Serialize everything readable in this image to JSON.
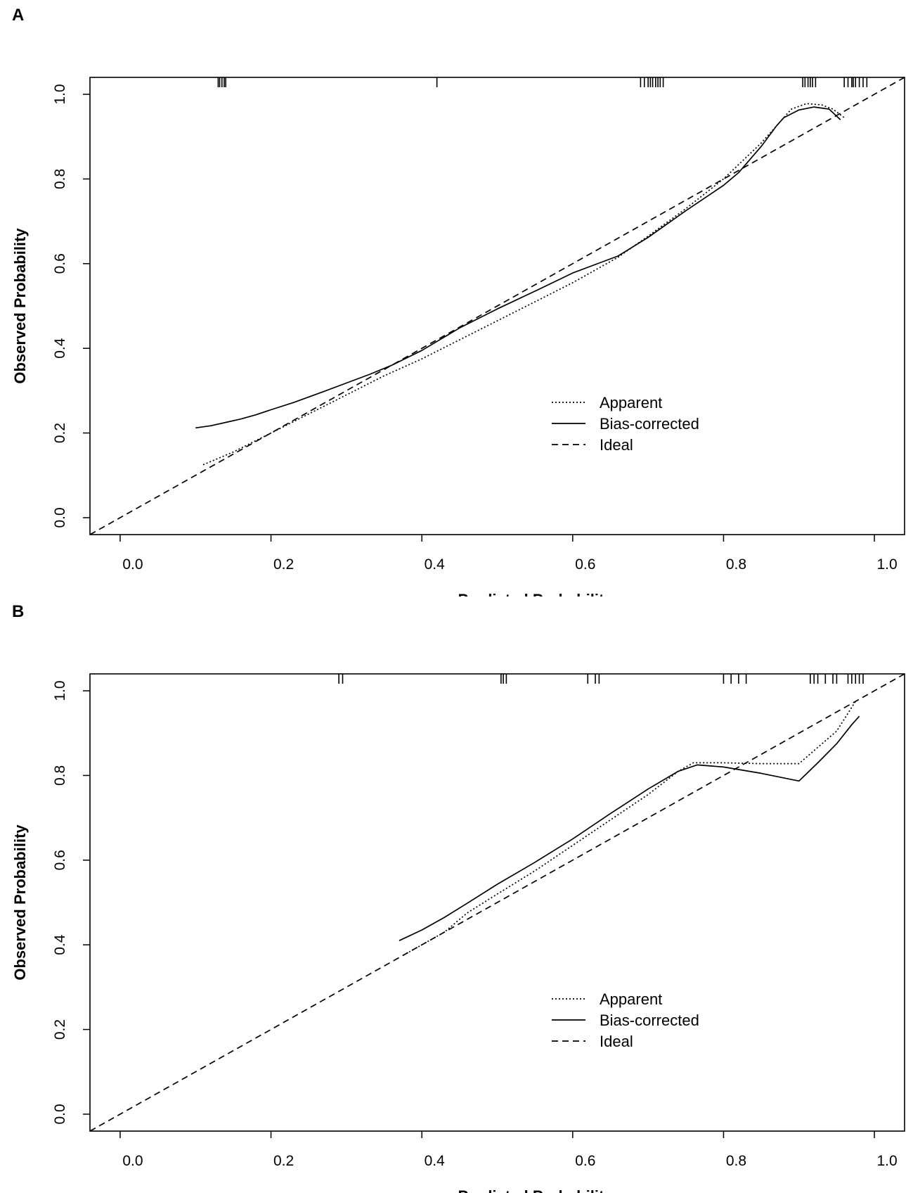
{
  "chart_data": [
    {
      "panel": "A",
      "type": "line",
      "title": "",
      "xlabel": "Predicted Probability",
      "ylabel": "Observed Probability",
      "xlim": [
        -0.04,
        1.04
      ],
      "ylim": [
        -0.04,
        1.04
      ],
      "xticks": [
        "0.0",
        "0.2",
        "0.4",
        "0.6",
        "0.8",
        "1.0"
      ],
      "yticks": [
        "0.0",
        "0.2",
        "0.4",
        "0.6",
        "0.8",
        "1.0"
      ],
      "legend": [
        "Apparent",
        "Bias-corrected",
        "Ideal"
      ],
      "legend_position": "lower-right",
      "series": [
        {
          "name": "Apparent",
          "style": "dotted",
          "points": [
            [
              0.11,
              0.125
            ],
            [
              0.15,
              0.155
            ],
            [
              0.2,
              0.2
            ],
            [
              0.25,
              0.245
            ],
            [
              0.3,
              0.29
            ],
            [
              0.35,
              0.335
            ],
            [
              0.4,
              0.375
            ],
            [
              0.45,
              0.42
            ],
            [
              0.5,
              0.465
            ],
            [
              0.55,
              0.51
            ],
            [
              0.6,
              0.555
            ],
            [
              0.66,
              0.615
            ],
            [
              0.7,
              0.665
            ],
            [
              0.75,
              0.73
            ],
            [
              0.8,
              0.8
            ],
            [
              0.85,
              0.885
            ],
            [
              0.89,
              0.965
            ],
            [
              0.91,
              0.978
            ],
            [
              0.93,
              0.975
            ],
            [
              0.945,
              0.965
            ],
            [
              0.96,
              0.945
            ]
          ]
        },
        {
          "name": "Bias-corrected",
          "style": "solid",
          "points": [
            [
              0.1,
              0.212
            ],
            [
              0.12,
              0.217
            ],
            [
              0.14,
              0.225
            ],
            [
              0.16,
              0.233
            ],
            [
              0.18,
              0.243
            ],
            [
              0.2,
              0.255
            ],
            [
              0.23,
              0.272
            ],
            [
              0.27,
              0.298
            ],
            [
              0.3,
              0.318
            ],
            [
              0.33,
              0.338
            ],
            [
              0.36,
              0.36
            ],
            [
              0.4,
              0.395
            ],
            [
              0.45,
              0.448
            ],
            [
              0.5,
              0.493
            ],
            [
              0.55,
              0.535
            ],
            [
              0.6,
              0.578
            ],
            [
              0.63,
              0.598
            ],
            [
              0.66,
              0.618
            ],
            [
              0.7,
              0.662
            ],
            [
              0.75,
              0.725
            ],
            [
              0.8,
              0.785
            ],
            [
              0.82,
              0.815
            ],
            [
              0.85,
              0.877
            ],
            [
              0.87,
              0.925
            ],
            [
              0.88,
              0.945
            ],
            [
              0.9,
              0.963
            ],
            [
              0.92,
              0.97
            ],
            [
              0.94,
              0.965
            ],
            [
              0.955,
              0.94
            ]
          ]
        },
        {
          "name": "Ideal",
          "style": "dashed",
          "points": [
            [
              -0.04,
              -0.04
            ],
            [
              1.04,
              1.04
            ]
          ]
        }
      ],
      "rug": [
        0.13,
        0.132,
        0.135,
        0.138,
        0.14,
        0.42,
        0.69,
        0.695,
        0.7,
        0.703,
        0.706,
        0.71,
        0.713,
        0.716,
        0.72,
        0.905,
        0.908,
        0.912,
        0.915,
        0.918,
        0.922,
        0.96,
        0.965,
        0.97,
        0.972,
        0.975,
        0.98,
        0.985,
        0.99
      ]
    },
    {
      "panel": "B",
      "type": "line",
      "title": "",
      "xlabel": "Predicted Probability",
      "ylabel": "Observed Probability",
      "xlim": [
        -0.04,
        1.04
      ],
      "ylim": [
        -0.04,
        1.04
      ],
      "xticks": [
        "0.0",
        "0.2",
        "0.4",
        "0.6",
        "0.8",
        "1.0"
      ],
      "yticks": [
        "0.0",
        "0.2",
        "0.4",
        "0.6",
        "0.8",
        "1.0"
      ],
      "legend": [
        "Apparent",
        "Bias-corrected",
        "Ideal"
      ],
      "legend_position": "lower-right",
      "series": [
        {
          "name": "Apparent",
          "style": "dotted",
          "points": [
            [
              0.375,
              0.375
            ],
            [
              0.4,
              0.4
            ],
            [
              0.43,
              0.43
            ],
            [
              0.46,
              0.475
            ],
            [
              0.5,
              0.52
            ],
            [
              0.55,
              0.575
            ],
            [
              0.6,
              0.635
            ],
            [
              0.65,
              0.695
            ],
            [
              0.7,
              0.755
            ],
            [
              0.74,
              0.81
            ],
            [
              0.76,
              0.83
            ],
            [
              0.8,
              0.83
            ],
            [
              0.85,
              0.828
            ],
            [
              0.9,
              0.828
            ],
            [
              0.95,
              0.905
            ],
            [
              0.975,
              0.975
            ]
          ]
        },
        {
          "name": "Bias-corrected",
          "style": "solid",
          "points": [
            [
              0.37,
              0.41
            ],
            [
              0.4,
              0.435
            ],
            [
              0.43,
              0.465
            ],
            [
              0.46,
              0.498
            ],
            [
              0.5,
              0.543
            ],
            [
              0.55,
              0.595
            ],
            [
              0.6,
              0.65
            ],
            [
              0.65,
              0.71
            ],
            [
              0.7,
              0.768
            ],
            [
              0.74,
              0.81
            ],
            [
              0.765,
              0.825
            ],
            [
              0.8,
              0.82
            ],
            [
              0.85,
              0.805
            ],
            [
              0.9,
              0.787
            ],
            [
              0.925,
              0.83
            ],
            [
              0.95,
              0.875
            ],
            [
              0.97,
              0.92
            ],
            [
              0.98,
              0.94
            ]
          ]
        },
        {
          "name": "Ideal",
          "style": "dashed",
          "points": [
            [
              -0.04,
              -0.04
            ],
            [
              1.04,
              1.04
            ]
          ]
        }
      ],
      "rug": [
        0.29,
        0.295,
        0.505,
        0.508,
        0.512,
        0.62,
        0.63,
        0.635,
        0.8,
        0.81,
        0.82,
        0.83,
        0.915,
        0.92,
        0.925,
        0.935,
        0.945,
        0.95,
        0.965,
        0.97,
        0.975,
        0.98,
        0.985
      ]
    }
  ]
}
